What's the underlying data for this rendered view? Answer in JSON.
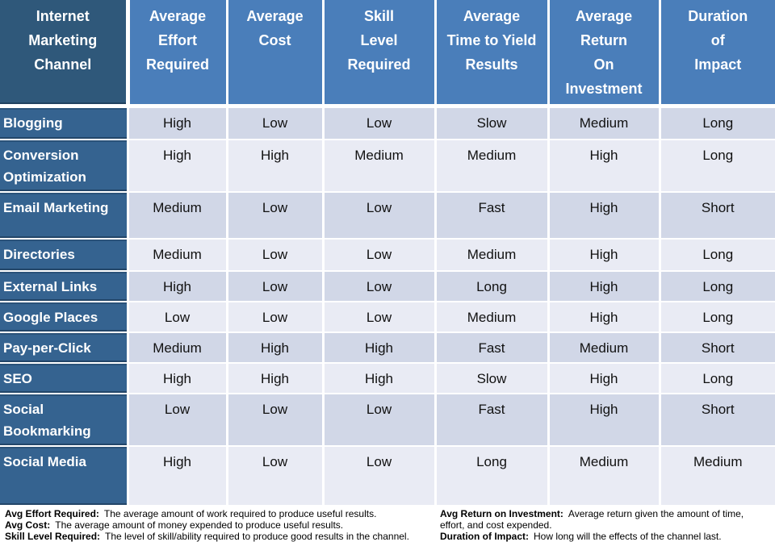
{
  "table": {
    "header": {
      "channel": "Internet\nMarketing\nChannel",
      "columns": [
        "Average\nEffort\nRequired",
        "Average\nCost",
        "Skill\nLevel\nRequired",
        "Average\nTime to Yield\nResults",
        "Average\nReturn\nOn\nInvestment",
        "Duration\nof\nImpact"
      ]
    },
    "rows": [
      {
        "channel": "Blogging",
        "values": [
          "High",
          "Low",
          "Low",
          "Slow",
          "Medium",
          "Long"
        ]
      },
      {
        "channel": "Conversion Optimization",
        "values": [
          "High",
          "High",
          "Medium",
          "Medium",
          "High",
          "Long"
        ]
      },
      {
        "channel": "Email Marketing",
        "values": [
          "Medium",
          "Low",
          "Low",
          "Fast",
          "High",
          "Short"
        ]
      },
      {
        "channel": "Directories",
        "values": [
          "Medium",
          "Low",
          "Low",
          "Medium",
          "High",
          "Long"
        ]
      },
      {
        "channel": "External Links",
        "values": [
          "High",
          "Low",
          "Low",
          "Long",
          "High",
          "Long"
        ]
      },
      {
        "channel": "Google Places",
        "values": [
          "Low",
          "Low",
          "Low",
          "Medium",
          "High",
          "Long"
        ]
      },
      {
        "channel": "Pay-per-Click",
        "values": [
          "Medium",
          "High",
          "High",
          "Fast",
          "Medium",
          "Short"
        ]
      },
      {
        "channel": "SEO",
        "values": [
          "High",
          "High",
          "High",
          "Slow",
          "High",
          "Long"
        ]
      },
      {
        "channel": "Social Bookmarking",
        "values": [
          "Low",
          "Low",
          "Low",
          "Fast",
          "High",
          "Short"
        ]
      },
      {
        "channel": "Social Media",
        "values": [
          "High",
          "Low",
          "Low",
          "Long",
          "Medium",
          "Medium"
        ]
      }
    ]
  },
  "footnotes": {
    "left": [
      {
        "label": "Avg Effort Required:",
        "text": "The average amount of work required to produce useful results."
      },
      {
        "label": "Avg Cost:",
        "text": "The  average amount of money expended to produce useful results."
      },
      {
        "label": "Skill Level Required:",
        "text": "The level of skill/ability required to produce good results in the channel."
      }
    ],
    "right": [
      {
        "label": "Avg Return on Investment:",
        "text": "Average return given the amount of time, effort, and cost expended."
      },
      {
        "label": "Duration of Impact:",
        "text": "How long will the effects of the channel last."
      }
    ]
  },
  "colors": {
    "corner_header_bg": "#2F587A",
    "column_header_bg": "#4A7EBA",
    "row_header_bg": "#356390",
    "row_band_dark": "#D1D7E7",
    "row_band_light": "#E9EBF4",
    "header_text": "#FFFFFF",
    "body_text": "#111111"
  }
}
